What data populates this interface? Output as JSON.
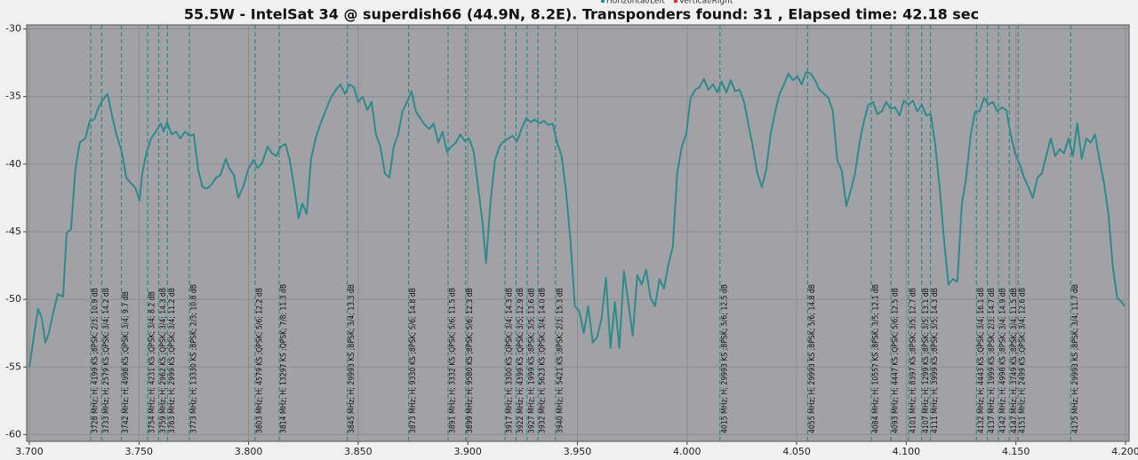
{
  "chart_data": {
    "type": "line",
    "title": "55.5W - IntelSat 34 @ superdish66 (44.9N, 8.2E). Transponders found: 31 , Elapsed time: 42.18 sec",
    "legend": [
      {
        "name": "Horizontal/Left",
        "color": "#2a8c8c"
      },
      {
        "name": "Vertical/Right",
        "color": "#e03030"
      }
    ],
    "xlim": [
      3.7,
      4.2
    ],
    "ylim": [
      -60.5,
      -29.7
    ],
    "xticks": [
      {
        "value": 3.7,
        "label": "3.700"
      },
      {
        "value": 3.75,
        "label": "3.750"
      },
      {
        "value": 3.8,
        "label": "3.800"
      },
      {
        "value": 3.85,
        "label": "3.850"
      },
      {
        "value": 3.9,
        "label": "3.900"
      },
      {
        "value": 3.95,
        "label": "3.950"
      },
      {
        "value": 4.0,
        "label": "4.000"
      },
      {
        "value": 4.05,
        "label": "4.050"
      },
      {
        "value": 4.1,
        "label": "4.100"
      },
      {
        "value": 4.15,
        "label": "4.150"
      },
      {
        "value": 4.2,
        "label": "4.200"
      }
    ],
    "yticks": [
      -30,
      -35,
      -40,
      -45,
      -50,
      -55,
      -60
    ],
    "grid": true,
    "x": [
      3.7,
      3.702,
      3.704,
      3.7057,
      3.7073,
      3.7089,
      3.711,
      3.713,
      3.7154,
      3.717,
      3.719,
      3.721,
      3.723,
      3.7255,
      3.7276,
      3.7296,
      3.7316,
      3.7333,
      3.7357,
      3.7377,
      3.7397,
      3.7422,
      3.7442,
      3.7462,
      3.7482,
      3.7503,
      3.7515,
      3.7535,
      3.7556,
      3.7576,
      3.76,
      3.7612,
      3.7628,
      3.7649,
      3.7669,
      3.7689,
      3.771,
      3.773,
      3.775,
      3.777,
      3.779,
      3.7811,
      3.7831,
      3.7852,
      3.7872,
      3.7896,
      3.7912,
      3.7933,
      3.7953,
      3.7977,
      3.7998,
      3.8022,
      3.8042,
      3.8062,
      3.8087,
      3.8107,
      3.8127,
      3.8147,
      3.8168,
      3.8188,
      3.8208,
      3.8228,
      3.8245,
      3.8265,
      3.8285,
      3.8306,
      3.8326,
      3.835,
      3.8375,
      3.8399,
      3.8419,
      3.844,
      3.846,
      3.848,
      3.85,
      3.852,
      3.8541,
      3.8561,
      3.8581,
      3.8601,
      3.8622,
      3.8642,
      3.8662,
      3.8682,
      3.8702,
      3.8723,
      3.8743,
      3.8763,
      3.8783,
      3.8804,
      3.8824,
      3.8844,
      3.8865,
      3.8885,
      3.8905,
      3.8925,
      3.8946,
      3.8966,
      3.8986,
      3.9006,
      3.9027,
      3.9047,
      3.9067,
      3.9083,
      3.9104,
      3.9124,
      3.9144,
      3.9164,
      3.9185,
      3.9205,
      3.9225,
      3.9245,
      3.9266,
      3.9286,
      3.9306,
      3.9326,
      3.9347,
      3.9367,
      3.9387,
      3.9407,
      3.9428,
      3.9448,
      3.9468,
      3.9488,
      3.9509,
      3.9529,
      3.9549,
      3.957,
      3.959,
      3.961,
      3.963,
      3.9651,
      3.9671,
      3.9691,
      3.9712,
      3.9732,
      3.9752,
      3.9773,
      3.9793,
      3.9813,
      3.9834,
      3.9854,
      3.9874,
      3.9895,
      3.9915,
      3.9935,
      3.9955,
      3.9976,
      3.9996,
      4.0016,
      4.0037,
      4.0057,
      4.0077,
      4.0097,
      4.0118,
      4.0138,
      4.0158,
      4.0179,
      4.0199,
      4.0219,
      4.024,
      4.026,
      4.028,
      4.03,
      4.0321,
      4.0341,
      4.0361,
      4.0381,
      4.0402,
      4.0422,
      4.0442,
      4.0462,
      4.0483,
      4.0503,
      4.0523,
      4.0543,
      4.0564,
      4.0584,
      4.0604,
      4.0625,
      4.0645,
      4.0665,
      4.0685,
      4.0706,
      4.0726,
      4.0746,
      4.0766,
      4.0787,
      4.0807,
      4.0827,
      4.0848,
      4.0868,
      4.0888,
      4.0908,
      4.0929,
      4.0949,
      4.0969,
      4.0989,
      4.101,
      4.103,
      4.105,
      4.1071,
      4.1091,
      4.1111,
      4.1131,
      4.1152,
      4.1172,
      4.1192,
      4.1212,
      4.1233,
      4.1253,
      4.1273,
      4.1294,
      4.1314,
      4.1334,
      4.1355,
      4.1375,
      4.1395,
      4.1415,
      4.1436,
      4.1456,
      4.1476,
      4.1496,
      4.1517,
      4.1537,
      4.1557,
      4.1577,
      4.1598,
      4.1618,
      4.1638,
      4.1659,
      4.1679,
      4.1699,
      4.1719,
      4.174,
      4.176,
      4.178,
      4.18,
      4.1821,
      4.1841,
      4.1861,
      4.1881,
      4.1902,
      4.1922,
      4.1942,
      4.1962,
      4.1983,
      4.1995
    ],
    "series": [
      {
        "color": "#2a8c8c",
        "values": [
          -55.0,
          -52.8,
          -50.7,
          -51.4,
          -53.2,
          -52.5,
          -50.9,
          -49.6,
          -49.8,
          -45.1,
          -44.8,
          -40.4,
          -38.4,
          -38.1,
          -36.8,
          -36.7,
          -35.8,
          -35.3,
          -34.8,
          -36.4,
          -37.8,
          -39.1,
          -41.0,
          -41.4,
          -41.7,
          -42.7,
          -40.7,
          -39.1,
          -38.1,
          -37.6,
          -37.0,
          -37.6,
          -36.9,
          -37.8,
          -37.6,
          -38.1,
          -37.6,
          -37.9,
          -37.8,
          -40.4,
          -41.7,
          -41.8,
          -41.5,
          -41.0,
          -40.8,
          -39.6,
          -40.3,
          -40.8,
          -42.5,
          -41.6,
          -40.4,
          -39.7,
          -40.3,
          -39.9,
          -38.7,
          -39.2,
          -39.4,
          -38.7,
          -38.5,
          -39.7,
          -41.7,
          -44.0,
          -42.9,
          -43.7,
          -39.6,
          -38.1,
          -37.1,
          -36.1,
          -35.1,
          -34.5,
          -34.1,
          -34.8,
          -34.1,
          -34.3,
          -35.4,
          -35.0,
          -36.0,
          -35.4,
          -37.8,
          -38.7,
          -40.7,
          -41.0,
          -38.7,
          -37.8,
          -36.1,
          -35.4,
          -34.6,
          -36.1,
          -36.6,
          -37.1,
          -37.4,
          -37.0,
          -38.4,
          -37.6,
          -39.1,
          -38.7,
          -38.4,
          -37.8,
          -38.3,
          -38.1,
          -39.1,
          -41.7,
          -44.3,
          -47.3,
          -42.7,
          -39.7,
          -38.7,
          -38.3,
          -38.1,
          -37.9,
          -38.3,
          -37.4,
          -36.6,
          -36.9,
          -36.7,
          -37.0,
          -36.8,
          -37.1,
          -37.0,
          -38.4,
          -39.4,
          -42.0,
          -45.6,
          -50.5,
          -50.9,
          -52.5,
          -50.5,
          -53.2,
          -52.8,
          -51.4,
          -48.4,
          -53.6,
          -50.2,
          -53.6,
          -47.9,
          -50.2,
          -52.7,
          -48.2,
          -48.9,
          -47.8,
          -49.9,
          -50.5,
          -48.5,
          -49.2,
          -47.4,
          -46.1,
          -40.7,
          -38.7,
          -37.8,
          -35.1,
          -34.5,
          -34.3,
          -33.7,
          -34.5,
          -34.1,
          -34.7,
          -33.9,
          -34.7,
          -33.8,
          -34.6,
          -34.5,
          -35.4,
          -37.1,
          -38.7,
          -40.7,
          -41.7,
          -40.4,
          -37.8,
          -36.1,
          -34.8,
          -34.1,
          -33.3,
          -33.8,
          -33.5,
          -34.1,
          -33.2,
          -33.3,
          -33.8,
          -34.5,
          -34.8,
          -35.1,
          -36.1,
          -39.7,
          -40.5,
          -43.1,
          -42.0,
          -40.7,
          -38.4,
          -36.8,
          -35.6,
          -35.4,
          -36.3,
          -36.1,
          -35.4,
          -35.9,
          -35.8,
          -36.4,
          -35.3,
          -35.6,
          -35.3,
          -36.1,
          -35.6,
          -36.4,
          -36.3,
          -38.4,
          -41.7,
          -45.6,
          -48.9,
          -48.5,
          -48.7,
          -43.0,
          -41.0,
          -37.8,
          -36.1,
          -36.1,
          -35.1,
          -35.6,
          -35.4,
          -36.1,
          -35.8,
          -36.0,
          -37.8,
          -39.2,
          -40.0,
          -41.0,
          -41.7,
          -42.5,
          -41.0,
          -40.7,
          -39.4,
          -38.1,
          -39.4,
          -38.9,
          -39.2,
          -38.1,
          -39.4,
          -37.0,
          -39.6,
          -38.1,
          -38.4,
          -37.8,
          -39.7,
          -41.4,
          -43.7,
          -47.6,
          -49.9,
          -50.2,
          -50.5
        ]
      }
    ],
    "annotations": [
      {
        "x": 3.728,
        "label": "3728 MHz; H; 4199 KS ;8PSK; 2/3; 10.9 dB"
      },
      {
        "x": 3.733,
        "label": "3733 MHz; H; 2579 KS ;QPSK; 3/4; 14.2 dB"
      },
      {
        "x": 3.742,
        "label": "3742 MHz; H; 4998 KS ;QPSK; 3/4; 9.7 dB"
      },
      {
        "x": 3.754,
        "label": "3754 MHz; H; 4231 KS ;QPSK; 3/4; 8.2 dB"
      },
      {
        "x": 3.759,
        "label": "3759 MHz; H; 2962 KS ;QPSK; 3/4; 14.3 dB"
      },
      {
        "x": 3.763,
        "label": "3763 MHz; H; 2999 KS ;QPSK; 3/4; 11.2 dB"
      },
      {
        "x": 3.773,
        "label": "3773 MHz; H; 13330 KS ;8PSK; 2/3; 10.8 dB"
      },
      {
        "x": 3.803,
        "label": "3803 MHz; H; 4579 KS ;QPSK; 5/6; 12.2 dB"
      },
      {
        "x": 3.814,
        "label": "3814 MHz; H; 13297 KS ;QPSK; 7/8; 11.3 dB"
      },
      {
        "x": 3.845,
        "label": "3845 MHz; H; 29993 KS ;8PSK; 3/4; 13.3 dB"
      },
      {
        "x": 3.873,
        "label": "3873 MHz; H; 9330 KS ;8PSK; 5/6; 14.8 dB"
      },
      {
        "x": 3.891,
        "label": "3891 MHz; H; 3332 KS ;QPSK; 5/6; 11.5 dB"
      },
      {
        "x": 3.899,
        "label": "3899 MHz; H; 9580 KS ;8PSK; 5/6; 12.3 dB"
      },
      {
        "x": 3.917,
        "label": "3917 MHz; H; 3300 KS ;QPSK; 3/4; 14.3 dB"
      },
      {
        "x": 3.922,
        "label": "3922 MHz; H; 4399 KS ;QPSK; 3/5; 12.9 dB"
      },
      {
        "x": 3.927,
        "label": "3927 MHz; H; 1999 KS ;8PSK; 3/5; 13.6 dB"
      },
      {
        "x": 3.932,
        "label": "3932 MHz; H; 5623 KS ;QPSK; 3/4; 14.0 dB"
      },
      {
        "x": 3.94,
        "label": "3940 MHz; H; 5421 KS ;8PSK; 2/3; 15.3 dB"
      },
      {
        "x": 4.015,
        "label": "4015 MHz; H; 29993 KS ;8PSK; 5/6; 12.5 dB"
      },
      {
        "x": 4.055,
        "label": "4055 MHz; H; 29993 KS ;8PSK; 5/6; 14.8 dB"
      },
      {
        "x": 4.084,
        "label": "4084 MHz; H; 10557 KS ;8PSK; 3/5; 12.1 dB"
      },
      {
        "x": 4.093,
        "label": "4093 MHz; H; 4447 KS ;QPSK; 5/6; 12.5 dB"
      },
      {
        "x": 4.101,
        "label": "4101 MHz; H; 8397 KS ;8PSK; 3/5; 12.7 dB"
      },
      {
        "x": 4.107,
        "label": "4107 MHz; H; 1299 KS ;8PSK; 3/5; 13.1 dB"
      },
      {
        "x": 4.111,
        "label": "4111 MHz; H; 3999 KS ;8PSK; 3/5; 14.3 dB"
      },
      {
        "x": 4.132,
        "label": "4132 MHz; H; 4443 KS ;QPSK; 3/4; 16.1 dB"
      },
      {
        "x": 4.137,
        "label": "4137 MHz; H; 1999 KS ;8PSK; 2/3; 14.7 dB"
      },
      {
        "x": 4.142,
        "label": "4142 MHz; H; 4998 KS ;8PSK; 3/4; 14.9 dB"
      },
      {
        "x": 4.147,
        "label": "4147 MHz; H; 3749 KS ;8PSK; 3/4; 11.5 dB"
      },
      {
        "x": 4.151,
        "label": "4151 MHz; H; 2499 KS ;QPSK; 3/4; 12.6 dB"
      },
      {
        "x": 4.175,
        "label": "4175 MHz; H; 29993 KS ;8PSK; 3/4; 11.7 dB"
      }
    ]
  }
}
